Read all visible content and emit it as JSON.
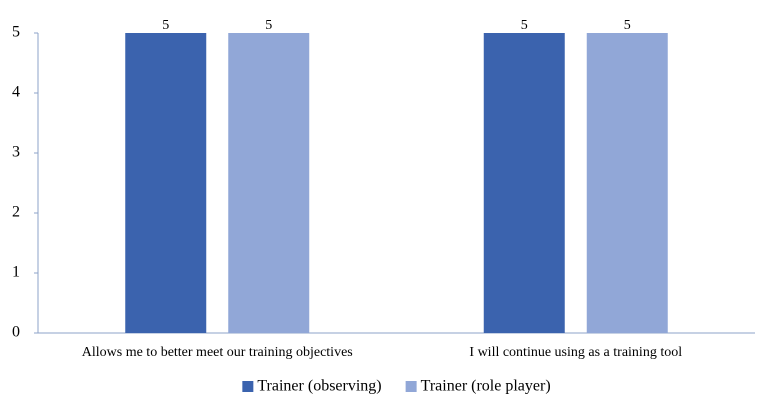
{
  "chart_data": {
    "type": "bar",
    "categories": [
      "Allows me to better meet our training objectives",
      "I will continue using as a training tool"
    ],
    "series": [
      {
        "name": "Trainer (observing)",
        "color": "#3b63ae",
        "values": [
          5,
          5
        ]
      },
      {
        "name": "Trainer (role player)",
        "color": "#91a7d7",
        "values": [
          5,
          5
        ]
      }
    ],
    "ylim": [
      0,
      5
    ],
    "yticks": [
      0,
      1,
      2,
      3,
      4,
      5
    ],
    "grid": false,
    "legend": "bottom"
  }
}
